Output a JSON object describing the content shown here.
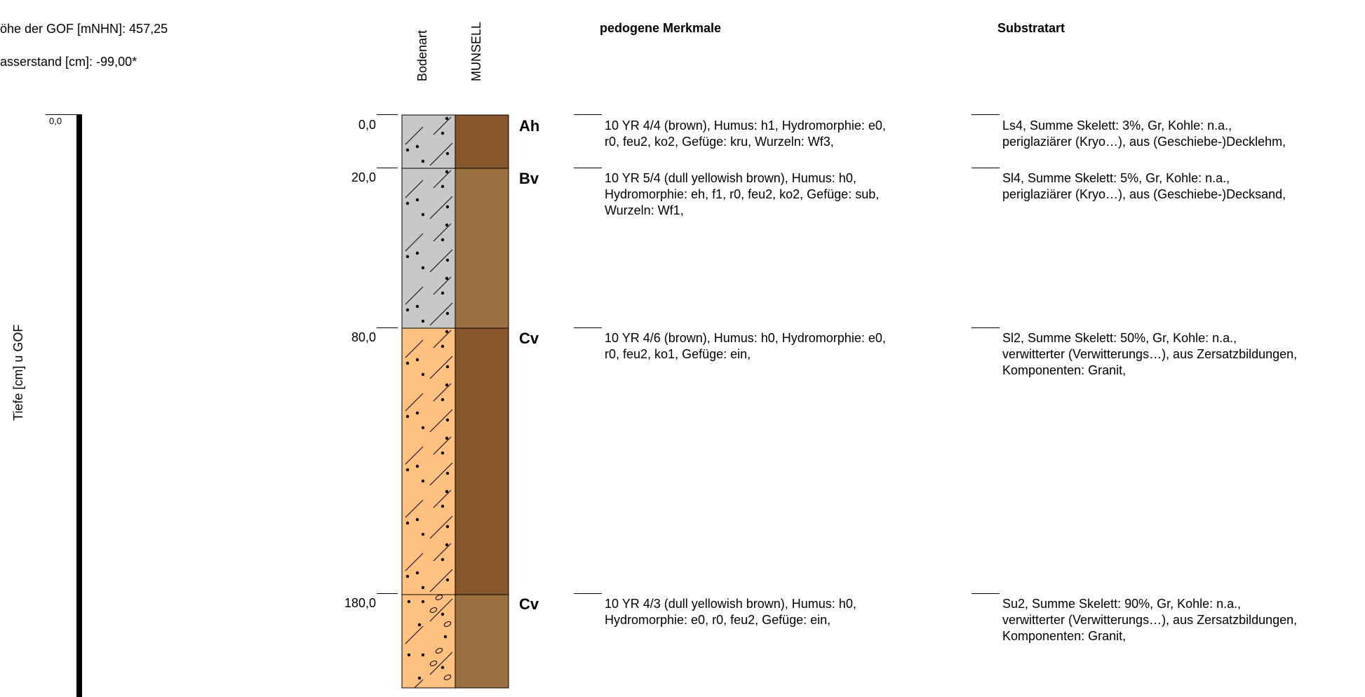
{
  "header": {
    "gof_height": "öhe der GOF [mNHN]: 457,25",
    "water_level": "asserstand [cm]: -99,00*",
    "col_bodenart": "Bodenart",
    "col_munsell": "MUNSELL",
    "col_pedogene": "pedogene Merkmale",
    "col_substrat": "Substratart"
  },
  "axis": {
    "label": "Tiefe [cm] u GOF",
    "top_value": "0,0"
  },
  "layers": [
    {
      "depth": "0,0",
      "horizon": "Ah",
      "pedogene": [
        "10 YR 4/4 (brown), Humus: h1, Hydromorphie: e0,",
        "r0, feu2, ko2, Gefüge: kru, Wurzeln: Wf3,"
      ],
      "substrat": [
        "Ls4, Summe Skelett: 3%, Gr, Kohle: n.a.,",
        "periglaziärer (Kryo…), aus (Geschiebe-)Decklehm,"
      ],
      "soil_color": "#c8c8c8",
      "munsell_color": "#87562d",
      "top_cm": 0,
      "bottom_cm": 20
    },
    {
      "depth": "20,0",
      "horizon": "Bv",
      "pedogene": [
        "10 YR 5/4 (dull yellowish brown), Humus: h0,",
        "Hydromorphie: eh, f1, r0, feu2, ko2, Gefüge: sub,",
        "Wurzeln: Wf1,"
      ],
      "substrat": [
        "Sl4, Summe Skelett: 5%, Gr, Kohle: n.a.,",
        "periglaziärer (Kryo…), aus (Geschiebe-)Decksand,"
      ],
      "soil_color": "#c8c8c8",
      "munsell_color": "#9b7040",
      "top_cm": 20,
      "bottom_cm": 80
    },
    {
      "depth": "80,0",
      "horizon": "Cv",
      "pedogene": [
        "10 YR 4/6 (brown), Humus: h0, Hydromorphie: e0,",
        "r0, feu2, ko1, Gefüge: ein,"
      ],
      "substrat": [
        "Sl2, Summe Skelett: 50%, Gr, Kohle: n.a.,",
        "verwitterter (Verwitterungs…), aus Zersatzbildungen,",
        "Komponenten: Granit,"
      ],
      "soil_color": "#ffc080",
      "munsell_color": "#87562d",
      "top_cm": 80,
      "bottom_cm": 180
    },
    {
      "depth": "180,0",
      "horizon": "Cv",
      "pedogene": [
        "10 YR 4/3 (dull yellowish brown), Humus: h0,",
        "Hydromorphie: e0, r0, feu2, Gefüge: ein,"
      ],
      "substrat": [
        "Su2, Summe Skelett: 90%, Gr, Kohle: n.a.,",
        "verwitterter (Verwitterungs…), aus Zersatzbildungen,",
        "Komponenten: Granit,"
      ],
      "soil_color": "#ffc080",
      "munsell_color": "#9b7040",
      "top_cm": 180,
      "bottom_cm": 215
    }
  ]
}
